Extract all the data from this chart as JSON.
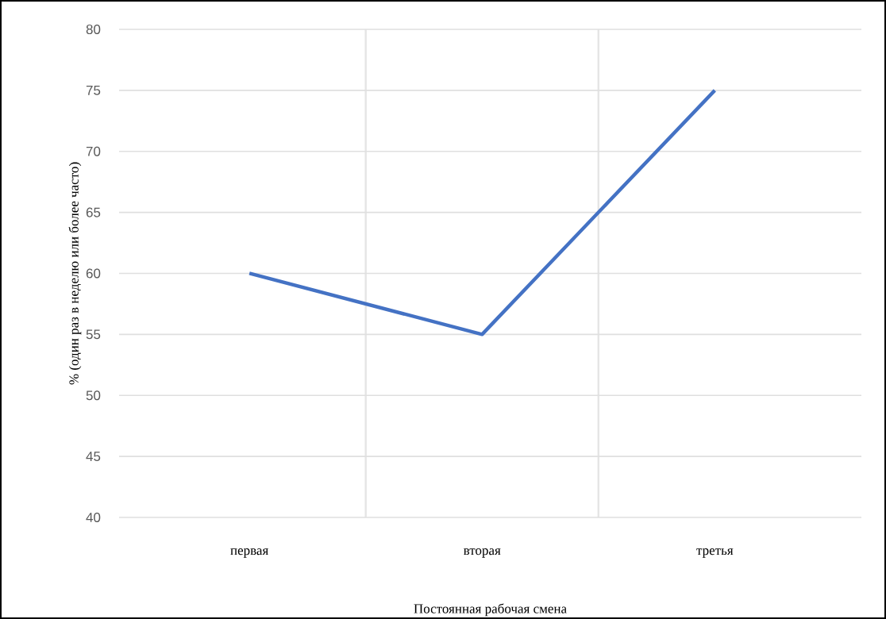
{
  "chart_data": {
    "type": "line",
    "xlabel": "Постоянная рабочая смена",
    "ylabel": "% (один раз в неделю или более часто)",
    "categories": [
      "первая",
      "вторая",
      "третья"
    ],
    "values": [
      60,
      55,
      75
    ],
    "color": "#4472c4",
    "ylim": [
      40,
      80
    ],
    "yticks": [
      40,
      45,
      50,
      55,
      60,
      65,
      70,
      75,
      80
    ],
    "grid": true,
    "marker": "none",
    "line_style": "solid"
  }
}
